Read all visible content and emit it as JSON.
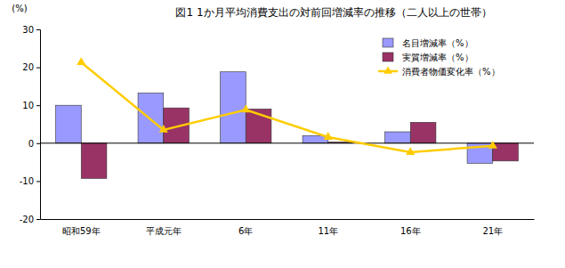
{
  "chart_data": {
    "type": "bar",
    "title": "図1 1か月平均消費支出の対前回増減率の推移（二人以上の世帯）",
    "ylabel": "(%)",
    "categories": [
      "昭和59年",
      "平成元年",
      "6年",
      "11年",
      "16年",
      "21年"
    ],
    "series": [
      {
        "name": "名目増減率（%）",
        "type": "bar",
        "color": "#9999ff",
        "values": [
          10.0,
          13.2,
          18.8,
          2.0,
          3.0,
          -5.3
        ]
      },
      {
        "name": "実質増減率（%）",
        "type": "bar",
        "color": "#993366",
        "values": [
          -9.3,
          9.3,
          9.0,
          0.3,
          5.5,
          -4.7
        ]
      },
      {
        "name": "消費者物価変化率（%）",
        "type": "line",
        "color": "#ffcc00",
        "marker": "triangle",
        "values": [
          21.3,
          3.5,
          8.8,
          1.6,
          -2.4,
          -0.7
        ]
      }
    ],
    "ylim": [
      -20,
      30
    ],
    "yticks": [
      -20,
      -10,
      0,
      10,
      20,
      30
    ],
    "grid": false,
    "legend": "upper right"
  }
}
